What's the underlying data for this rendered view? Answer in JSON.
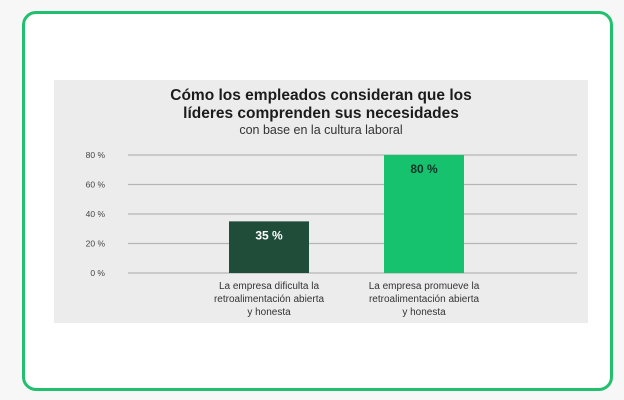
{
  "chart_data": {
    "type": "bar",
    "title_lines": [
      "Cómo los empleados consideran que los",
      "líderes comprenden sus necesidades"
    ],
    "subtitle": "con base en la cultura laboral",
    "categories": [
      [
        "La empresa dificulta la",
        "retroalimentación abierta",
        "y honesta"
      ],
      [
        "La empresa promueve la",
        "retroalimentación abierta",
        "y honesta"
      ]
    ],
    "values": [
      35,
      80
    ],
    "data_labels": [
      "35 %",
      "80 %"
    ],
    "bar_colors": [
      "#1f4d3a",
      "#17c26f"
    ],
    "data_label_colors": [
      "#ffffff",
      "#0f3325"
    ],
    "yticks": [
      0,
      20,
      40,
      60,
      80
    ],
    "ytick_labels": [
      "0 %",
      "20 %",
      "40 %",
      "60 %",
      "80 %"
    ],
    "ylim": [
      0,
      80
    ],
    "grid": true,
    "xlabel": "",
    "ylabel": ""
  },
  "colors": {
    "card_border": "#22c06e",
    "panel_bg": "#ececec"
  }
}
